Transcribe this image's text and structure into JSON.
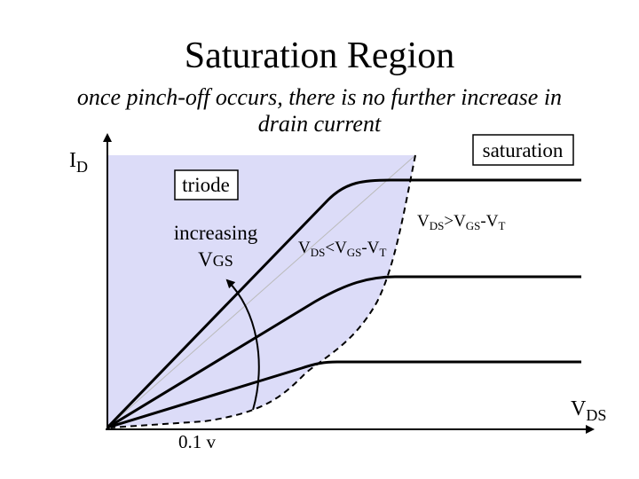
{
  "title": "Saturation Region",
  "subtitle": [
    "once pinch-off occurs, there is no further increase in",
    "drain current"
  ],
  "y_axis_label": [
    "I",
    "D"
  ],
  "x_axis_label": [
    "V",
    "DS"
  ],
  "saturation_label": "saturation",
  "triode_label": "triode",
  "increasing_label": [
    "increasing",
    "V",
    "GS"
  ],
  "triode_condition": [
    "V",
    "DS",
    "<V",
    "GS",
    "-V",
    "T"
  ],
  "saturation_condition": [
    "V",
    "DS",
    ">V",
    "GS",
    "-V",
    "T"
  ],
  "x_tick_label": "0.1 v"
}
